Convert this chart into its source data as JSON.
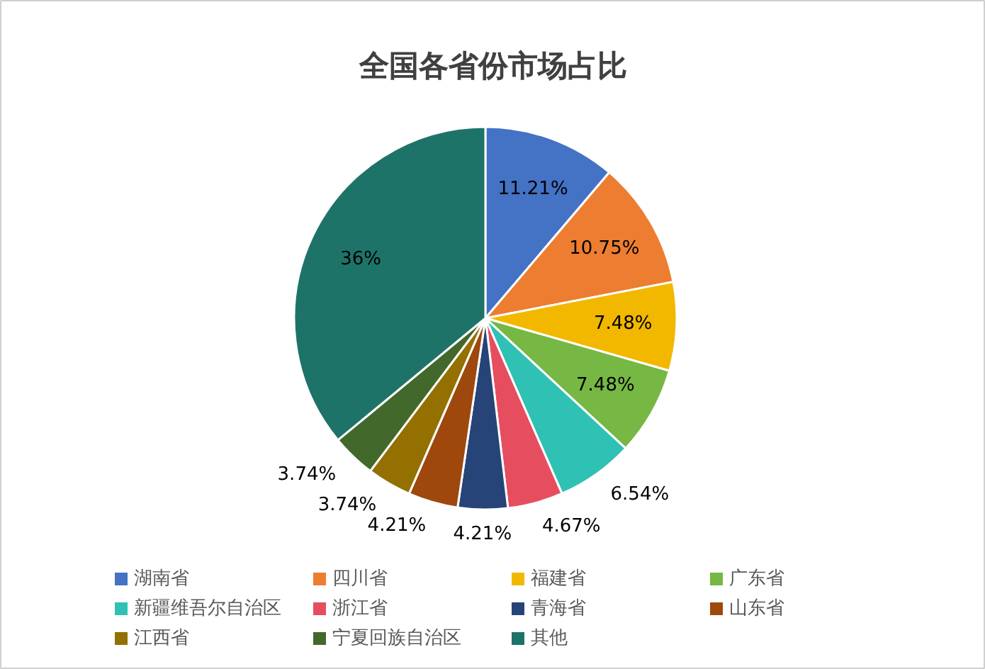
{
  "chart_data": {
    "type": "pie",
    "title": "全国各省份市场占比",
    "categories": [
      "湖南省",
      "四川省",
      "福建省",
      "广东省",
      "新疆维吾尔自治区",
      "浙江省",
      "青海省",
      "山东省",
      "江西省",
      "宁夏回族自治区",
      "其他"
    ],
    "values": [
      11.21,
      10.75,
      7.48,
      7.48,
      6.54,
      4.67,
      4.21,
      4.21,
      3.74,
      3.74,
      36
    ],
    "value_labels": [
      "11.21%",
      "10.75%",
      "7.48%",
      "7.48%",
      "6.54%",
      "4.67%",
      "4.21%",
      "4.21%",
      "3.74%",
      "3.74%",
      "36%"
    ],
    "colors": [
      "#4472c4",
      "#ed7d31",
      "#f2b800",
      "#76b843",
      "#2fc1b3",
      "#e64e60",
      "#264478",
      "#9e480e",
      "#937000",
      "#43682b",
      "#1e7369"
    ],
    "legend": "bottom"
  }
}
